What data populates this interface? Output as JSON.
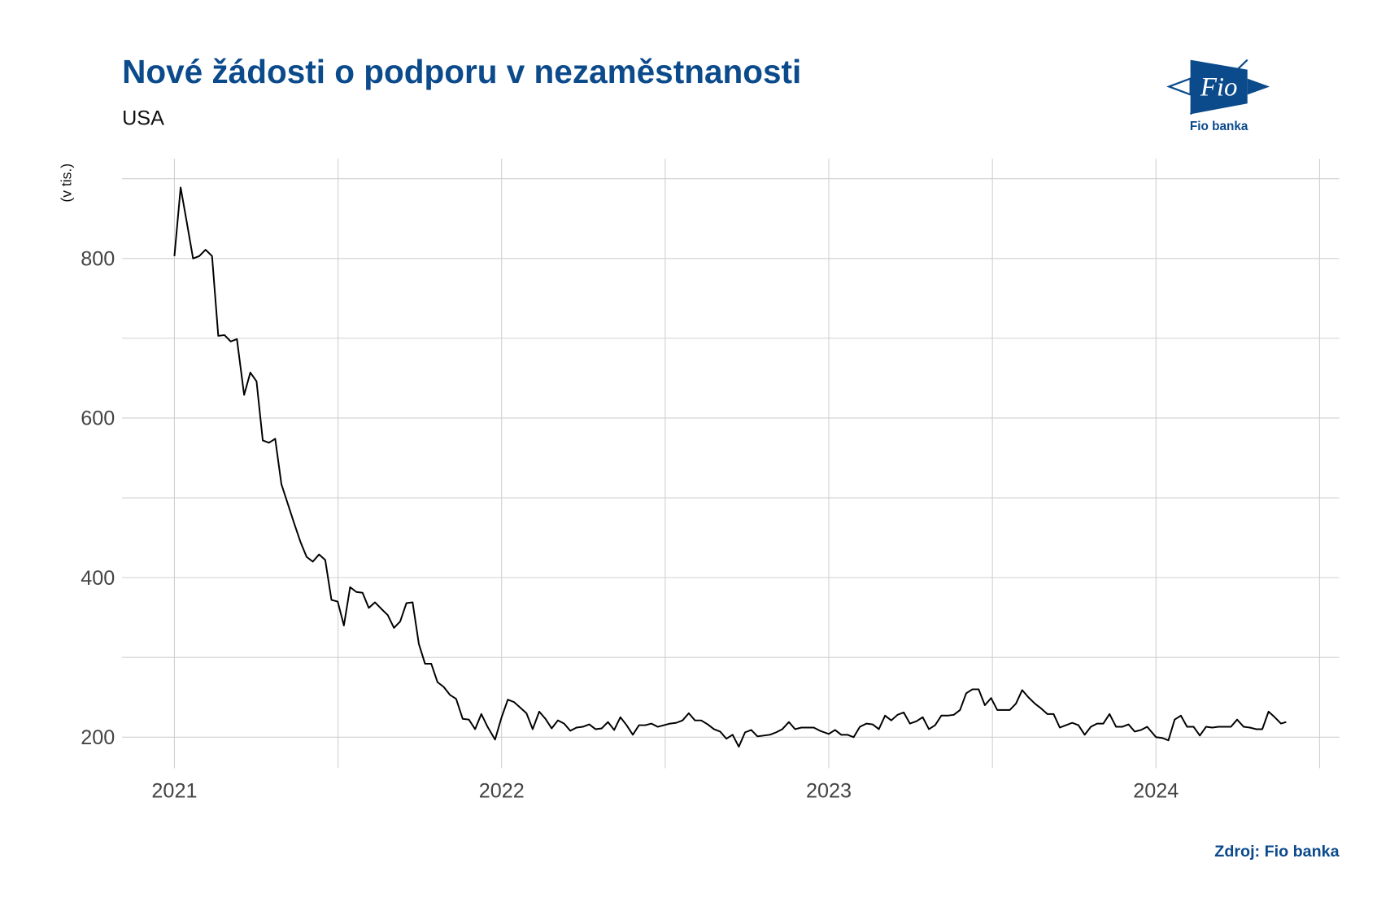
{
  "chart_data": {
    "type": "line",
    "title": "Nové žádosti o podporu v nezaměstnanosti",
    "subtitle": "USA",
    "y_label": "(v tis.)",
    "source": "Zdroj: Fio banka",
    "logo": {
      "text": "Fio",
      "caption": "Fio banka"
    },
    "xlim": [
      2020.84,
      2024.56
    ],
    "xticks": [
      2021,
      2022,
      2023,
      2024
    ],
    "x_minor_ticks": [
      2021.5,
      2022.5,
      2023.5,
      2024.5
    ],
    "ylim": [
      161,
      925
    ],
    "yticks": [
      200,
      400,
      600,
      800
    ],
    "y_minor_ticks": [
      300,
      500,
      700,
      900
    ],
    "grid": true,
    "series": [
      {
        "name": "USA",
        "color": "#000000",
        "x": [
          2021.0,
          2021.019,
          2021.038,
          2021.057,
          2021.076,
          2021.095,
          2021.115,
          2021.134,
          2021.153,
          2021.172,
          2021.191,
          2021.213,
          2021.232,
          2021.251,
          2021.27,
          2021.289,
          2021.308,
          2021.327,
          2021.366,
          2021.385,
          2021.404,
          2021.423,
          2021.442,
          2021.461,
          2021.48,
          2021.499,
          2021.518,
          2021.537,
          2021.556,
          2021.575,
          2021.594,
          2021.613,
          2021.632,
          2021.652,
          2021.671,
          2021.69,
          2021.709,
          2021.728,
          2021.747,
          2021.766,
          2021.785,
          2021.804,
          2021.823,
          2021.842,
          2021.861,
          2021.881,
          2021.9,
          2021.919,
          2021.938,
          2021.957,
          2021.98,
          2022.0,
          2022.019,
          2022.038,
          2022.057,
          2022.076,
          2022.095,
          2022.115,
          2022.134,
          2022.153,
          2022.172,
          2022.191,
          2022.21,
          2022.229,
          2022.248,
          2022.268,
          2022.287,
          2022.306,
          2022.325,
          2022.344,
          2022.363,
          2022.382,
          2022.401,
          2022.42,
          2022.439,
          2022.458,
          2022.477,
          2022.496,
          2022.515,
          2022.534,
          2022.553,
          2022.572,
          2022.591,
          2022.61,
          2022.63,
          2022.649,
          2022.668,
          2022.687,
          2022.706,
          2022.725,
          2022.744,
          2022.763,
          2022.782,
          2022.801,
          2022.82,
          2022.839,
          2022.858,
          2022.878,
          2022.897,
          2022.916,
          2022.935,
          2022.954,
          2022.973,
          2023.0,
          2023.019,
          2023.038,
          2023.057,
          2023.076,
          2023.095,
          2023.115,
          2023.134,
          2023.153,
          2023.172,
          2023.191,
          2023.21,
          2023.229,
          2023.248,
          2023.268,
          2023.287,
          2023.306,
          2023.325,
          2023.344,
          2023.363,
          2023.382,
          2023.401,
          2023.42,
          2023.439,
          2023.458,
          2023.477,
          2023.496,
          2023.515,
          2023.534,
          2023.553,
          2023.572,
          2023.591,
          2023.61,
          2023.63,
          2023.649,
          2023.668,
          2023.687,
          2023.706,
          2023.725,
          2023.744,
          2023.763,
          2023.782,
          2023.801,
          2023.82,
          2023.839,
          2023.858,
          2023.878,
          2023.897,
          2023.916,
          2023.935,
          2023.954,
          2023.973,
          2024.0,
          2024.019,
          2024.038,
          2024.057,
          2024.076,
          2024.095,
          2024.115,
          2024.134,
          2024.153,
          2024.172,
          2024.191,
          2024.21,
          2024.229,
          2024.248,
          2024.268,
          2024.287,
          2024.306,
          2024.325,
          2024.344,
          2024.363,
          2024.382,
          2024.398
        ],
        "values": [
          803,
          889,
          845,
          800,
          803,
          811,
          803,
          703,
          704,
          696,
          699,
          629,
          657,
          646,
          572,
          569,
          574,
          517,
          468,
          445,
          426,
          420,
          429,
          422,
          372,
          370,
          340,
          388,
          382,
          381,
          362,
          369,
          361,
          353,
          337,
          345,
          368,
          369,
          317,
          292,
          292,
          269,
          263,
          253,
          248,
          223,
          222,
          210,
          229,
          213,
          197,
          225,
          247,
          244,
          237,
          230,
          210,
          232,
          223,
          211,
          221,
          217,
          208,
          212,
          213,
          216,
          210,
          211,
          219,
          209,
          225,
          215,
          203,
          215,
          215,
          217,
          213,
          215,
          217,
          218,
          221,
          230,
          221,
          221,
          216,
          210,
          207,
          198,
          203,
          188,
          206,
          209,
          201,
          202,
          203,
          206,
          210,
          219,
          210,
          212,
          212,
          212,
          208,
          204,
          209,
          203,
          203,
          200,
          213,
          217,
          216,
          210,
          227,
          221,
          228,
          231,
          217,
          220,
          225,
          210,
          215,
          227,
          227,
          228,
          234,
          255,
          260,
          260,
          240,
          249,
          234,
          234,
          234,
          242,
          259,
          250,
          242,
          236,
          229,
          229,
          212,
          215,
          218,
          215,
          203,
          213,
          217,
          217,
          229,
          213,
          213,
          216,
          207,
          209,
          213,
          200,
          199,
          196,
          222,
          227,
          213,
          213,
          202,
          213,
          212,
          213,
          213,
          213,
          222,
          213,
          212,
          210,
          210,
          232,
          225,
          217,
          219
        ]
      }
    ]
  }
}
